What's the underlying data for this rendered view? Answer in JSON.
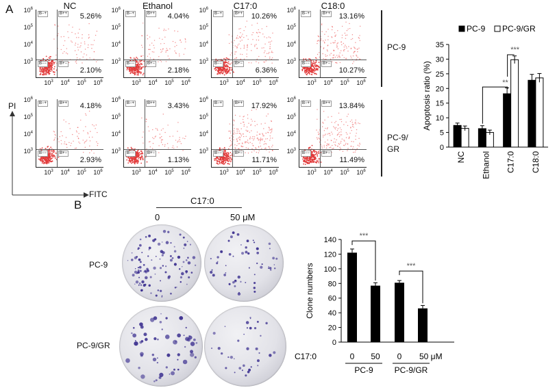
{
  "panel_a": {
    "label": "A",
    "columns": [
      "NC",
      "Ethanol",
      "C17:0",
      "C18:0"
    ],
    "rows": [
      {
        "label": "PC-9",
        "upper_right": [
          "5.26%",
          "4.04%",
          "10.26%",
          "13.16%"
        ],
        "lower_right": [
          "2.10%",
          "2.18%",
          "6.36%",
          "10.27%"
        ]
      },
      {
        "label_line1": "PC-9/",
        "label_line2": "GR",
        "upper_right": [
          "4.18%",
          "3.43%",
          "17.92%",
          "13.84%"
        ],
        "lower_right": [
          "2.93%",
          "1.13%",
          "11.71%",
          "11.49%"
        ]
      }
    ],
    "quadrant_labels": {
      "ul": "B−+",
      "ur": "B++",
      "ll": "B−−",
      "lr": "B+−"
    },
    "y_ticks": [
      "10",
      "10",
      "10",
      "10"
    ],
    "y_tick_exp": [
      "6",
      "5",
      "4",
      "3"
    ],
    "x_ticks": [
      "10",
      "10",
      "10",
      "10"
    ],
    "x_tick_exp": [
      "3",
      "4",
      "5",
      "6"
    ],
    "y_axis_label": "PI",
    "x_axis_label": "FITC"
  },
  "panel_b": {
    "label": "B",
    "treatment": "C17:0",
    "doses": [
      "0",
      "50 μM"
    ],
    "row_labels": [
      "PC-9",
      "PC-9/GR"
    ]
  },
  "chart_data": [
    {
      "type": "bar",
      "ylabel": "Apoptosis ratio (%)",
      "categories": [
        "NC",
        "Ethanol",
        "C17:0",
        "C18:0"
      ],
      "series": [
        {
          "name": "PC-9",
          "values": [
            7.4,
            6.3,
            18.2,
            22.8
          ],
          "errors": [
            0.8,
            1.0,
            2.0,
            2.0
          ],
          "color": "#000000"
        },
        {
          "name": "PC-9/GR",
          "values": [
            6.4,
            5.0,
            29.8,
            23.6
          ],
          "errors": [
            0.8,
            0.8,
            1.3,
            1.5
          ],
          "color": "#ffffff"
        }
      ],
      "ylim": [
        0,
        35
      ],
      "yticks": [
        0,
        5,
        10,
        15,
        20,
        25,
        30,
        35
      ],
      "legend": "top",
      "significance": [
        "**",
        "***"
      ]
    },
    {
      "type": "bar",
      "ylabel": "Clone numbers",
      "xlabel_prefix": "C17:0",
      "categories": [
        "0",
        "50",
        "0",
        "50 μM"
      ],
      "groups": [
        "PC-9",
        "PC-9/GR"
      ],
      "series": [
        {
          "values": [
            122,
            77,
            81,
            46
          ],
          "errors": [
            5,
            4,
            3,
            4
          ],
          "color": "#000000"
        }
      ],
      "ylim": [
        0,
        140
      ],
      "yticks": [
        0,
        20,
        40,
        60,
        80,
        100,
        120,
        140
      ],
      "significance": [
        "***",
        "***"
      ]
    }
  ]
}
